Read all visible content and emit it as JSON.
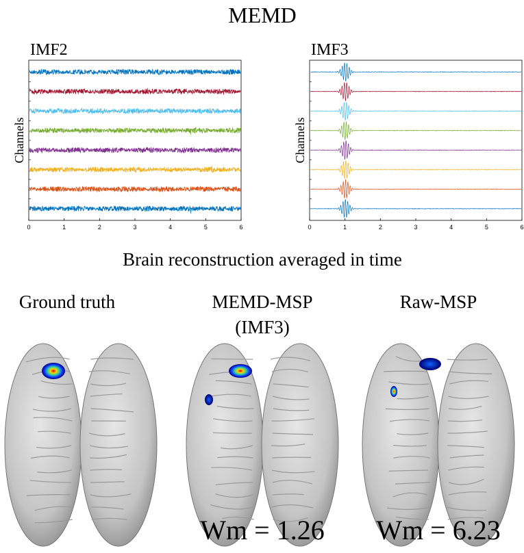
{
  "title": "MEMD",
  "panels": [
    {
      "label": "IMF2",
      "ylabel": "Channels",
      "xlim": [
        0,
        6
      ],
      "xticks": [
        0,
        1,
        2,
        3,
        4,
        5,
        6
      ],
      "channel_colors": [
        "#0072bd",
        "#a2142f",
        "#4dbeee",
        "#77ac30",
        "#7e2f8e",
        "#edb120",
        "#d95319",
        "#0072bd"
      ]
    },
    {
      "label": "IMF3",
      "ylabel": "Channels",
      "xlim": [
        0,
        6
      ],
      "xticks": [
        0,
        1,
        2,
        3,
        4,
        5,
        6
      ],
      "channel_colors": [
        "#0072bd",
        "#a2142f",
        "#4dbeee",
        "#77ac30",
        "#7e2f8e",
        "#edb120",
        "#d95319",
        "#0072bd"
      ]
    }
  ],
  "section_title": "Brain reconstruction averaged in time",
  "brains": [
    {
      "label": "Ground truth"
    },
    {
      "label": "MEMD-MSP",
      "sublabel": "(IMF3)",
      "metric": "Wm = 1.26"
    },
    {
      "label": "Raw-MSP",
      "metric": "Wm = 6.23"
    }
  ]
}
